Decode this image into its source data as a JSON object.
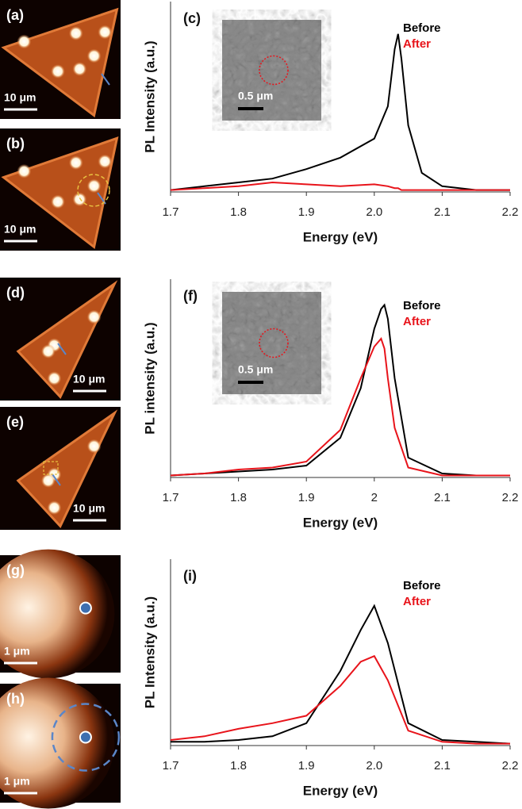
{
  "chart_data": [
    {
      "type": "line",
      "panel_label": "(c)",
      "y_label": "PL Intensity (a.u.)",
      "x_label": "Energy (eV)",
      "inset_scale_bar": "0.5 μm",
      "x": [
        1.7,
        1.75,
        1.8,
        1.85,
        1.9,
        1.95,
        2.0,
        2.02,
        2.03,
        2.035,
        2.04,
        2.05,
        2.07,
        2.1,
        2.15,
        2.2
      ],
      "series": [
        {
          "name": "Before",
          "color": "#000000",
          "values": [
            1,
            3,
            5,
            7,
            12,
            18,
            28,
            45,
            75,
            83,
            70,
            35,
            10,
            3,
            1,
            1
          ]
        },
        {
          "name": "After",
          "color": "#e8141b",
          "values": [
            1,
            2,
            3,
            5,
            4,
            3,
            4,
            3,
            2,
            2,
            1,
            1,
            1,
            1,
            1,
            1
          ]
        }
      ],
      "xlim": [
        1.7,
        2.2
      ],
      "xticks": [
        1.7,
        1.8,
        1.9,
        {
          "value": 2,
          "label": "2.0"
        },
        2.1,
        2.2
      ],
      "ylim": [
        0,
        100
      ],
      "legend": "upper right"
    },
    {
      "type": "line",
      "panel_label": "(f)",
      "y_label": "PL intensity (a.u.)",
      "x_label": "Energy (eV)",
      "inset_scale_bar": "0.5 μm",
      "x": [
        1.7,
        1.75,
        1.8,
        1.85,
        1.9,
        1.95,
        1.98,
        2.0,
        2.01,
        2.015,
        2.02,
        2.03,
        2.05,
        2.1,
        2.15,
        2.2
      ],
      "series": [
        {
          "name": "Before",
          "color": "#000000",
          "values": [
            1,
            2,
            3,
            4,
            6,
            20,
            45,
            75,
            85,
            87,
            80,
            50,
            10,
            2,
            1,
            1
          ]
        },
        {
          "name": "After",
          "color": "#e8141b",
          "values": [
            1,
            2,
            4,
            5,
            8,
            24,
            50,
            66,
            70,
            65,
            50,
            25,
            5,
            1,
            1,
            1
          ]
        }
      ],
      "xlim": [
        1.7,
        2.2
      ],
      "xticks": [
        1.7,
        1.8,
        1.9,
        2,
        2.1,
        2.2
      ],
      "ylim": [
        0,
        100
      ],
      "legend": "upper right"
    },
    {
      "type": "line",
      "panel_label": "(i)",
      "y_label": "PL Intensity (a.u.)",
      "x_label": "Energy (eV)",
      "x": [
        1.7,
        1.75,
        1.8,
        1.85,
        1.9,
        1.95,
        1.98,
        2.0,
        2.02,
        2.05,
        2.1,
        2.15,
        2.2
      ],
      "series": [
        {
          "name": "Before",
          "color": "#000000",
          "values": [
            2,
            2,
            3,
            5,
            12,
            40,
            62,
            75,
            55,
            12,
            3,
            2,
            1
          ]
        },
        {
          "name": "After",
          "color": "#e8141b",
          "values": [
            3,
            5,
            9,
            12,
            16,
            32,
            45,
            48,
            35,
            8,
            2,
            1,
            1
          ]
        }
      ],
      "xlim": [
        1.7,
        2.2
      ],
      "xticks": [
        1.7,
        1.8,
        1.9,
        {
          "value": 2,
          "label": "2.0"
        },
        2.1,
        2.2
      ],
      "ylim": [
        0,
        100
      ],
      "legend": "upper right"
    }
  ],
  "image_panels": [
    {
      "label": "(a)",
      "scale_bar": "10 μm"
    },
    {
      "label": "(b)",
      "scale_bar": "10 μm"
    },
    {
      "label": "(d)",
      "scale_bar": "10 μm"
    },
    {
      "label": "(e)",
      "scale_bar": "10 μm"
    },
    {
      "label": "(g)",
      "scale_bar": "1 μm"
    },
    {
      "label": "(h)",
      "scale_bar": "1 μm"
    }
  ]
}
